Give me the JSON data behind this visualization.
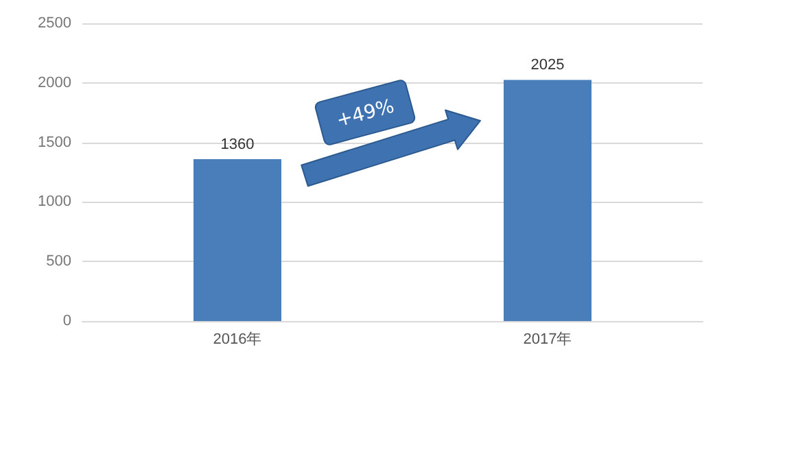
{
  "chart_data": {
    "type": "bar",
    "categories": [
      "2016年",
      "2017年"
    ],
    "values": [
      1360,
      2025
    ],
    "color": "#4a7ebb",
    "ylim": [
      0,
      2500
    ],
    "yticks": [
      0,
      500,
      1000,
      1500,
      2000,
      2500
    ],
    "grid": "y",
    "data_labels": true,
    "annotations": [
      "+49%"
    ]
  }
}
